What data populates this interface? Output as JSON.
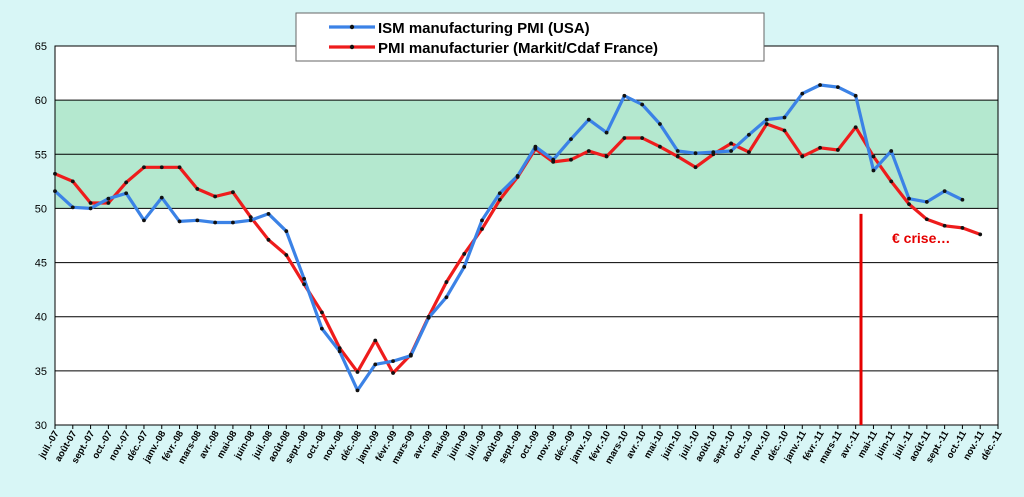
{
  "chart_data": {
    "type": "line",
    "ylim": [
      30,
      65
    ],
    "yticks": [
      30,
      35,
      40,
      45,
      50,
      55,
      60,
      65
    ],
    "grid": "horizontal",
    "legend_position": "top-center",
    "shaded_band": {
      "from": 50,
      "to": 60,
      "color": "#b4e8cf"
    },
    "categories": [
      "juil.-07",
      "août-07",
      "sept.-07",
      "oct.-07",
      "nov.-07",
      "déc.-07",
      "janv.-08",
      "févr.-08",
      "mars-08",
      "avr.-08",
      "mai-08",
      "juin-08",
      "juil.-08",
      "août-08",
      "sept.-08",
      "oct.-08",
      "nov.-08",
      "déc.-08",
      "janv.-09",
      "févr.-09",
      "mars-09",
      "avr.-09",
      "mai-09",
      "juin-09",
      "juil.-09",
      "août-09",
      "sept.-09",
      "oct.-09",
      "nov.-09",
      "déc.-09",
      "janv.-10",
      "févr.-10",
      "mars-10",
      "avr.-10",
      "mai-10",
      "juin-10",
      "juil.-10",
      "août-10",
      "sept.-10",
      "oct.-10",
      "nov.-10",
      "déc.-10",
      "janv.-11",
      "févr.-11",
      "mars-11",
      "avr.-11",
      "mai-11",
      "juin-11",
      "juil.-11",
      "août-11",
      "sept.-11",
      "oct.-11",
      "nov.-11",
      "déc.-11"
    ],
    "series": [
      {
        "name": "ISM manufacturing PMI (USA)",
        "color": "#3b82e6",
        "values": [
          51.6,
          50.1,
          50.0,
          50.9,
          51.4,
          48.9,
          51.0,
          48.8,
          48.9,
          48.7,
          48.7,
          48.9,
          49.5,
          47.9,
          43.5,
          38.9,
          36.8,
          33.2,
          35.6,
          35.9,
          36.4,
          39.9,
          41.8,
          44.6,
          48.9,
          51.4,
          53.0,
          55.7,
          54.5,
          56.4,
          58.2,
          57.0,
          60.4,
          59.6,
          57.8,
          55.3,
          55.1,
          55.2,
          55.3,
          56.8,
          58.2,
          58.4,
          60.6,
          61.4,
          61.2,
          60.4,
          53.5,
          55.3,
          50.9,
          50.6,
          51.6,
          50.8,
          null,
          null
        ]
      },
      {
        "name": "PMI manufacturier (Markit/Cdaf France)",
        "color": "#ee1c1c",
        "values": [
          53.2,
          52.5,
          50.5,
          50.5,
          52.4,
          53.8,
          53.8,
          53.8,
          51.8,
          51.1,
          51.5,
          49.2,
          47.1,
          45.7,
          43.0,
          40.4,
          37.1,
          34.9,
          37.8,
          34.8,
          36.5,
          40.0,
          43.2,
          45.8,
          48.1,
          50.8,
          52.9,
          55.5,
          54.3,
          54.5,
          55.3,
          54.8,
          56.5,
          56.5,
          55.7,
          54.8,
          53.8,
          55.0,
          56.0,
          55.2,
          57.8,
          57.2,
          54.8,
          55.6,
          55.4,
          57.5,
          54.8,
          52.5,
          50.4,
          49.0,
          48.4,
          48.2,
          47.6,
          null
        ]
      }
    ],
    "annotation": {
      "text": "€ crise…",
      "marker_category": "avr.-11",
      "marker_from": 30,
      "marker_to": 49.5,
      "color": "#e50000"
    }
  }
}
